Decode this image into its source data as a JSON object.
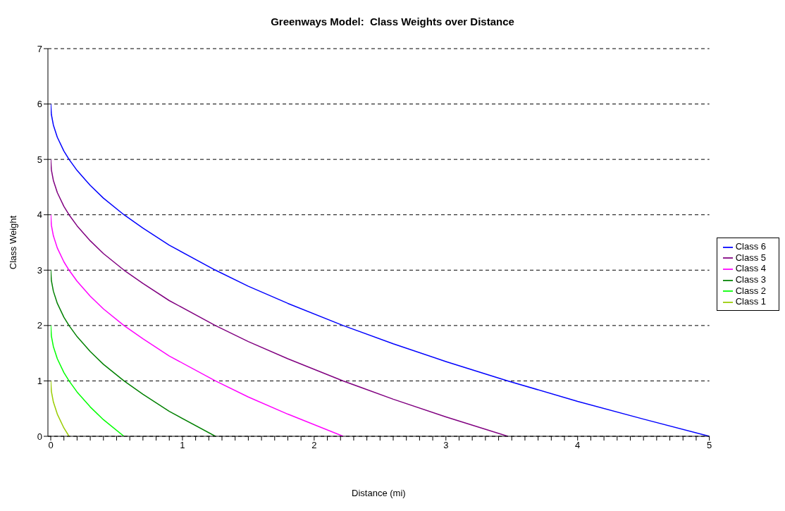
{
  "chart_data": {
    "type": "line",
    "title": "Greenways Model:  Class Weights over Distance",
    "xlabel": "Distance (mi)",
    "ylabel": "Class Weight",
    "xlim": [
      0,
      5
    ],
    "ylim": [
      0,
      7
    ],
    "xticks": [
      0,
      {
        "value": 0.1,
        "label": null
      },
      {
        "value": 0.2,
        "label": null
      },
      {
        "value": 0.3,
        "label": null
      },
      {
        "value": 0.4,
        "label": null
      },
      {
        "value": 0.5,
        "label": null
      },
      {
        "value": 0.6,
        "label": null
      },
      {
        "value": 0.7,
        "label": null
      },
      {
        "value": 0.8,
        "label": null
      },
      {
        "value": 0.9,
        "label": null
      },
      1,
      {
        "value": 1.1,
        "label": null
      },
      {
        "value": 1.2,
        "label": null
      },
      {
        "value": 1.3,
        "label": null
      },
      {
        "value": 1.4,
        "label": null
      },
      {
        "value": 1.5,
        "label": null
      },
      {
        "value": 1.6,
        "label": null
      },
      {
        "value": 1.7,
        "label": null
      },
      {
        "value": 1.8,
        "label": null
      },
      {
        "value": 1.9,
        "label": null
      },
      2,
      {
        "value": 2.1,
        "label": null
      },
      {
        "value": 2.2,
        "label": null
      },
      {
        "value": 2.3,
        "label": null
      },
      {
        "value": 2.4,
        "label": null
      },
      {
        "value": 2.5,
        "label": null
      },
      {
        "value": 2.6,
        "label": null
      },
      {
        "value": 2.7,
        "label": null
      },
      {
        "value": 2.8,
        "label": null
      },
      {
        "value": 2.9,
        "label": null
      },
      3,
      {
        "value": 3.1,
        "label": null
      },
      {
        "value": 3.2,
        "label": null
      },
      {
        "value": 3.3,
        "label": null
      },
      {
        "value": 3.4,
        "label": null
      },
      {
        "value": 3.5,
        "label": null
      },
      {
        "value": 3.6,
        "label": null
      },
      {
        "value": 3.7,
        "label": null
      },
      {
        "value": 3.8,
        "label": null
      },
      {
        "value": 3.9,
        "label": null
      },
      4,
      {
        "value": 4.1,
        "label": null
      },
      {
        "value": 4.2,
        "label": null
      },
      {
        "value": 4.3,
        "label": null
      },
      {
        "value": 4.4,
        "label": null
      },
      {
        "value": 4.5,
        "label": null
      },
      {
        "value": 4.6,
        "label": null
      },
      {
        "value": 4.7,
        "label": null
      },
      {
        "value": 4.8,
        "label": null
      },
      {
        "value": 4.9,
        "label": null
      },
      5
    ],
    "yticks": [
      0,
      1,
      2,
      3,
      4,
      5,
      6,
      7
    ],
    "grid": "y",
    "legend": "right",
    "line_style": "solid",
    "series": [
      {
        "name": "Class 6",
        "color": "#0000ff",
        "x": [
          0,
          0.005,
          0.02,
          0.05,
          0.1,
          0.139,
          0.2,
          0.3,
          0.4,
          0.556,
          0.7,
          0.9,
          1.25,
          1.5,
          1.8,
          2.22,
          2.6,
          3,
          3.47,
          4,
          4.5,
          5
        ],
        "values": [
          6,
          5.81,
          5.62,
          5.4,
          5.15,
          5,
          4.8,
          4.53,
          4.3,
          4,
          3.76,
          3.45,
          3,
          2.71,
          2.4,
          2,
          1.67,
          1.35,
          1,
          0.63,
          0.31,
          0
        ]
      },
      {
        "name": "Class 5",
        "color": "#800080",
        "x": [
          0,
          0.005,
          0.02,
          0.05,
          0.1,
          0.139,
          0.2,
          0.3,
          0.4,
          0.556,
          0.7,
          0.9,
          1.25,
          1.5,
          1.8,
          2.22,
          2.6,
          3,
          3.47
        ],
        "values": [
          5,
          4.81,
          4.62,
          4.4,
          4.15,
          4,
          3.8,
          3.53,
          3.3,
          3,
          2.76,
          2.45,
          2,
          1.71,
          1.4,
          1,
          0.67,
          0.35,
          0
        ]
      },
      {
        "name": "Class 4",
        "color": "#ff00ff",
        "x": [
          0,
          0.005,
          0.02,
          0.05,
          0.1,
          0.139,
          0.2,
          0.3,
          0.4,
          0.556,
          0.7,
          0.9,
          1.25,
          1.5,
          1.8,
          2.22
        ],
        "values": [
          4,
          3.81,
          3.62,
          3.4,
          3.15,
          3,
          2.8,
          2.53,
          2.3,
          2,
          1.76,
          1.45,
          1,
          0.71,
          0.4,
          0
        ]
      },
      {
        "name": "Class 3",
        "color": "#008000",
        "x": [
          0,
          0.005,
          0.02,
          0.05,
          0.1,
          0.139,
          0.2,
          0.3,
          0.4,
          0.556,
          0.7,
          0.9,
          1.25
        ],
        "values": [
          3,
          2.81,
          2.62,
          2.4,
          2.15,
          2,
          1.8,
          1.53,
          1.3,
          1,
          0.76,
          0.45,
          0
        ]
      },
      {
        "name": "Class 2",
        "color": "#00ff00",
        "x": [
          0,
          0.005,
          0.02,
          0.05,
          0.1,
          0.139,
          0.2,
          0.3,
          0.4,
          0.556
        ],
        "values": [
          2,
          1.81,
          1.62,
          1.4,
          1.15,
          1,
          0.8,
          0.53,
          0.3,
          0
        ]
      },
      {
        "name": "Class 1",
        "color": "#99cc00",
        "x": [
          0,
          0.005,
          0.02,
          0.05,
          0.1,
          0.139
        ],
        "values": [
          1,
          0.81,
          0.62,
          0.4,
          0.15,
          0
        ]
      }
    ]
  }
}
